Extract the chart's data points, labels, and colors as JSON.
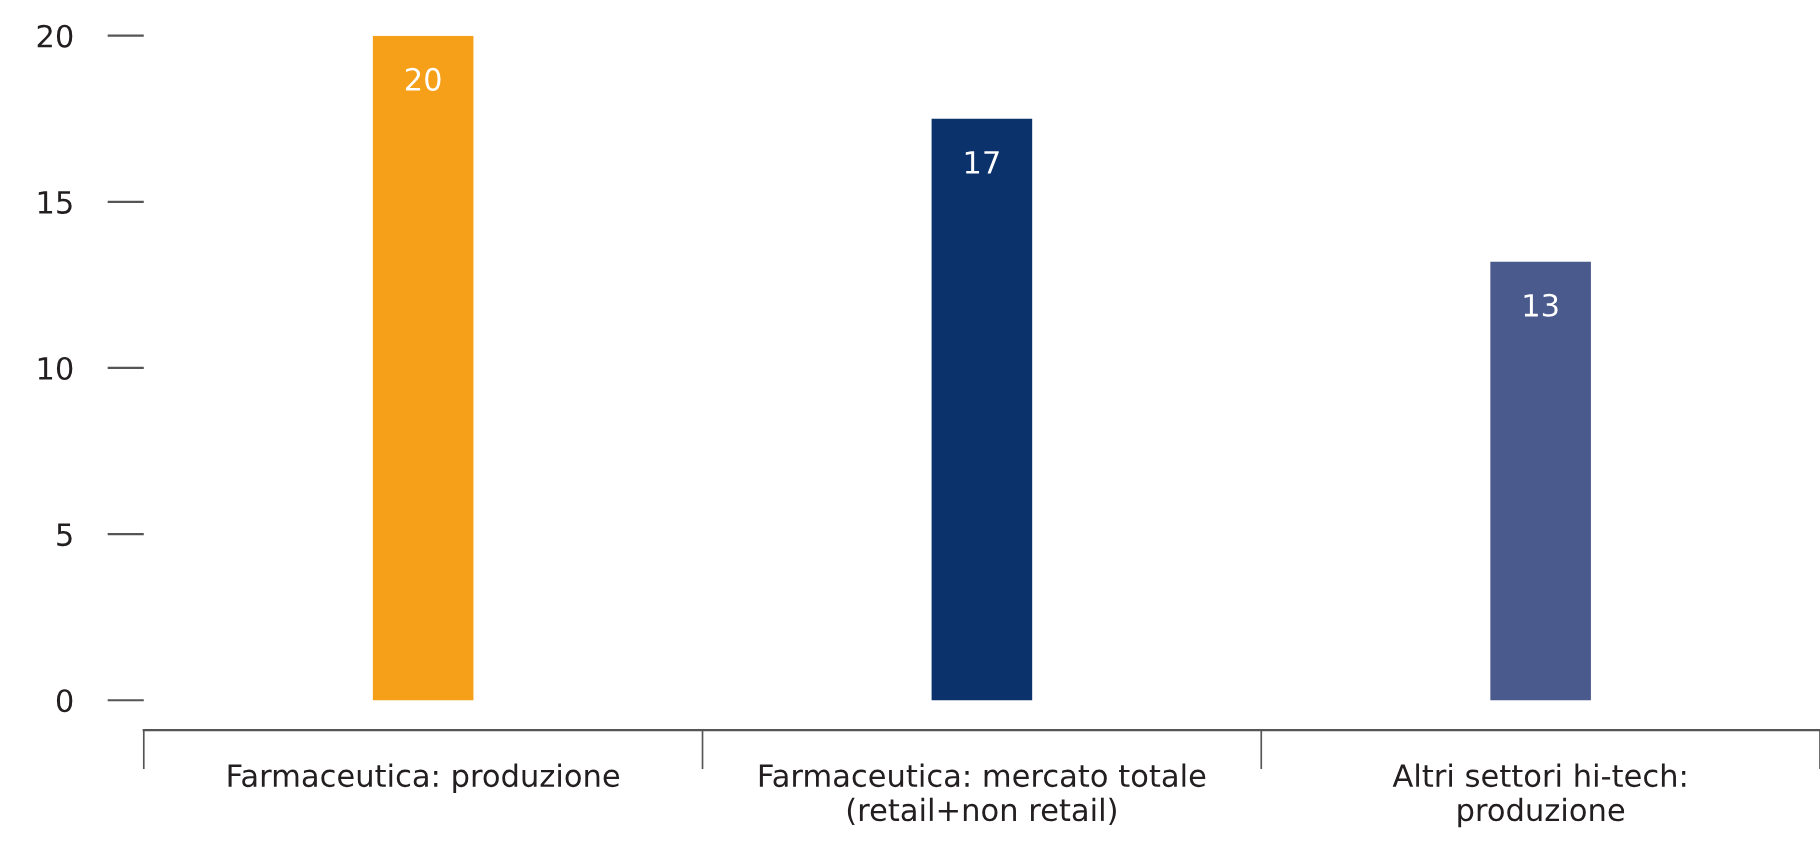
{
  "chart_data": {
    "type": "bar",
    "categories": [
      "Farmaceutica: produzione",
      "Farmaceutica: mercato totale\n(retail+non retail)",
      "Altri settori hi-tech:\nproduzione"
    ],
    "values": [
      20,
      17.5,
      13.2
    ],
    "value_labels": [
      "20",
      "17",
      "13"
    ],
    "colors": [
      "#f6a01a",
      "#0c326c",
      "#4a5a8d"
    ],
    "ylim": [
      -0.9,
      20
    ],
    "yticks": [
      0,
      5,
      10,
      15,
      20
    ],
    "grid": false,
    "legend": false
  }
}
